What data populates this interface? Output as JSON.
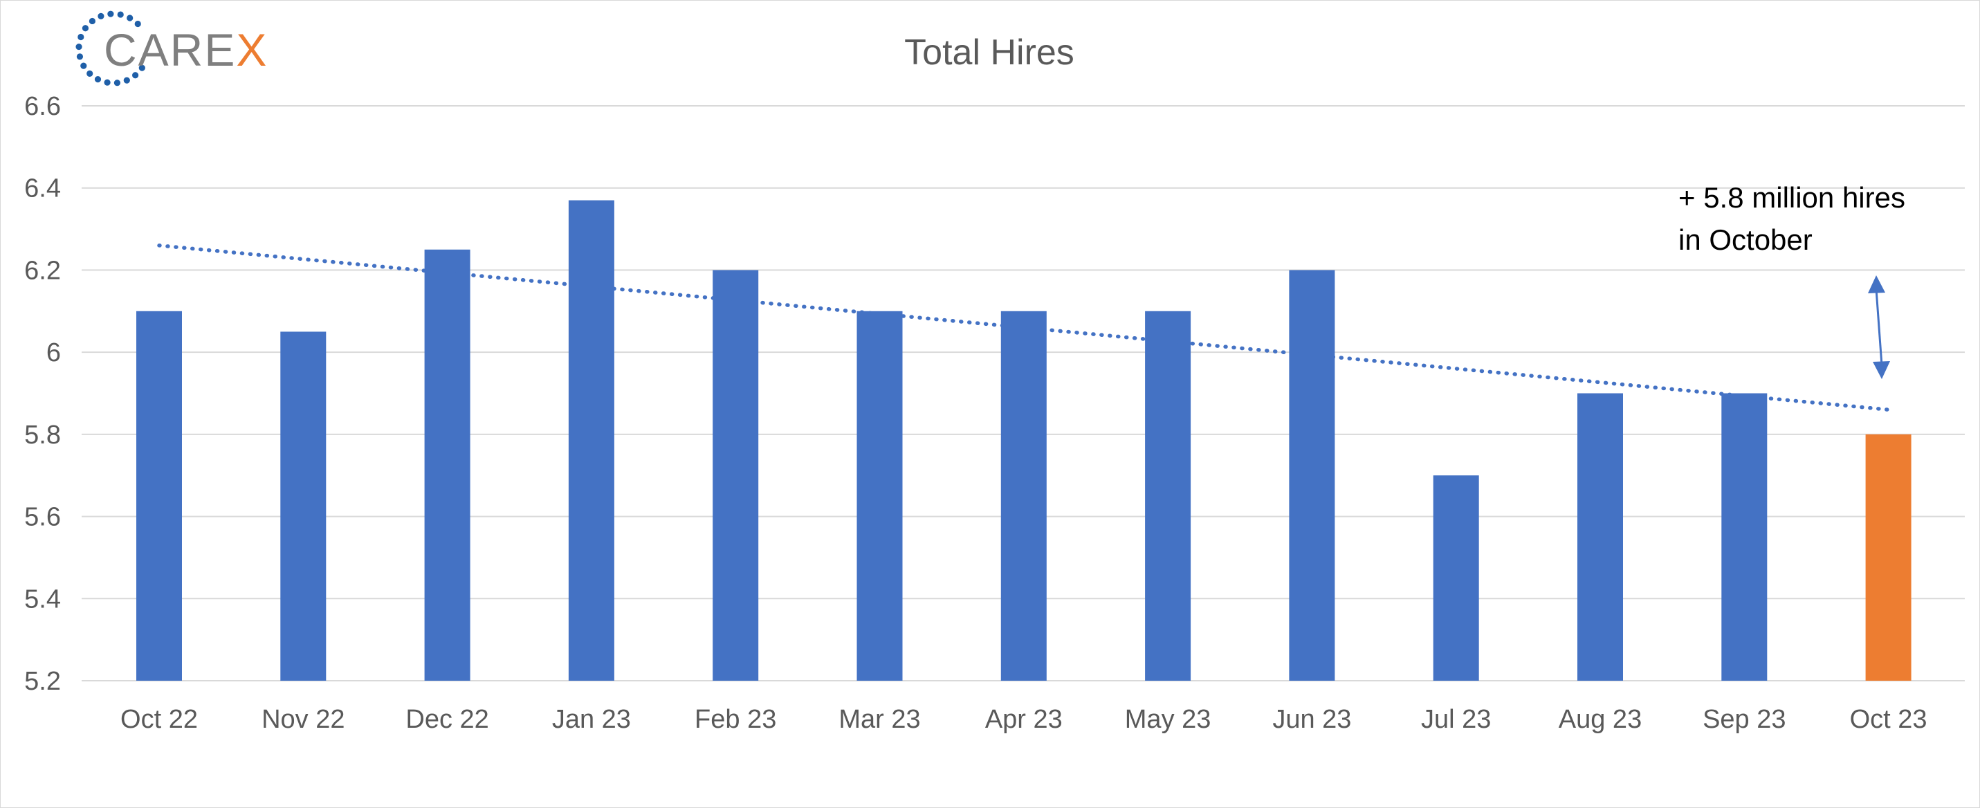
{
  "logo": {
    "text_main": "CARE",
    "text_accent": "X",
    "main_color": "#7f7f7f",
    "accent_color": "#ed7d31",
    "ring_color": "#1f5fa8"
  },
  "chart_data": {
    "type": "bar",
    "title": "Total Hires",
    "xlabel": "",
    "ylabel": "",
    "categories": [
      "Oct 22",
      "Nov 22",
      "Dec 22",
      "Jan 23",
      "Feb 23",
      "Mar 23",
      "Apr 23",
      "May 23",
      "Jun 23",
      "Jul 23",
      "Aug 23",
      "Sep 23",
      "Oct 23"
    ],
    "values": [
      6.1,
      6.05,
      6.25,
      6.37,
      6.2,
      6.1,
      6.1,
      6.1,
      6.2,
      5.7,
      5.9,
      5.9,
      5.8
    ],
    "ylim": [
      5.2,
      6.6
    ],
    "yticks": [
      5.2,
      5.4,
      5.6,
      5.8,
      6,
      6.2,
      6.4,
      6.6
    ],
    "grid": true,
    "legend": "none",
    "colors": {
      "bar": "#4472c4",
      "highlight_bar": "#ed7d31",
      "trendline": "#4472c4",
      "grid": "#d9d9d9"
    },
    "highlight_index": 12,
    "trendline": {
      "type": "linear",
      "style": "dotted",
      "start_value": 6.26,
      "end_value": 5.86
    },
    "annotation": {
      "lines": [
        "+ 5.8 million hires",
        "in October"
      ],
      "arrow": "double-headed"
    }
  }
}
